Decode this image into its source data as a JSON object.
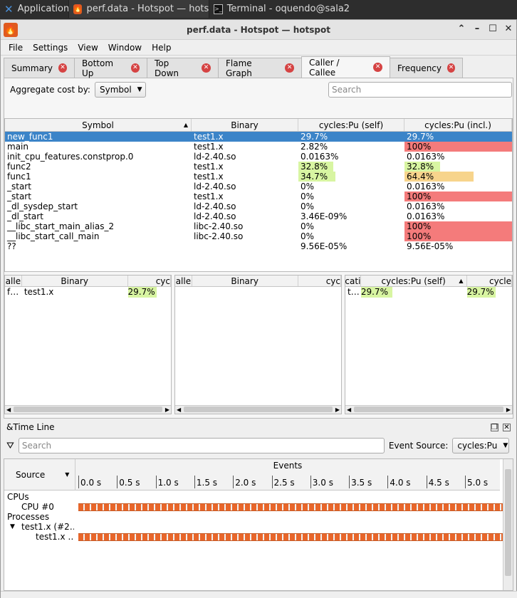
{
  "taskbar": {
    "apps_label": "Applications",
    "tasks": [
      {
        "label": "perf.data - Hotspot — hots…",
        "icon": "hotspot-icon"
      },
      {
        "label": "Terminal - oquendo@sala2…",
        "icon": "terminal-icon"
      }
    ]
  },
  "window": {
    "title": "perf.data - Hotspot — hotspot"
  },
  "menubar": [
    "File",
    "Settings",
    "View",
    "Window",
    "Help"
  ],
  "tabs": [
    "Summary",
    "Bottom Up",
    "Top Down",
    "Flame Graph",
    "Caller / Callee",
    "Frequency"
  ],
  "selected_tab": "Caller / Callee",
  "aggregate": {
    "label": "Aggregate cost by:",
    "value": "Symbol"
  },
  "search_placeholder": "Search",
  "main_table": {
    "columns": [
      "Symbol",
      "Binary",
      "cycles:Pu (self)",
      "cycles:Pu (incl.)"
    ],
    "rows": [
      {
        "symbol": "new_func1",
        "binary": "test1.x",
        "self": "29.7%",
        "incl": "29.7%",
        "selected": true
      },
      {
        "symbol": "main",
        "binary": "test1.x",
        "self": "2.82%",
        "incl": "100%"
      },
      {
        "symbol": "init_cpu_features.constprop.0",
        "binary": "ld-2.40.so",
        "self": "0.0163%",
        "incl": "0.0163%"
      },
      {
        "symbol": "func2",
        "binary": "test1.x",
        "self": "32.8%",
        "incl": "32.8%"
      },
      {
        "symbol": "func1",
        "binary": "test1.x",
        "self": "34.7%",
        "incl": "64.4%"
      },
      {
        "symbol": "_start",
        "binary": "ld-2.40.so",
        "self": "0%",
        "incl": "0.0163%"
      },
      {
        "symbol": "_start",
        "binary": "test1.x",
        "self": "0%",
        "incl": "100%"
      },
      {
        "symbol": "_dl_sysdep_start",
        "binary": "ld-2.40.so",
        "self": "0%",
        "incl": "0.0163%"
      },
      {
        "symbol": "_dl_start",
        "binary": "ld-2.40.so",
        "self": "3.46E-09%",
        "incl": "0.0163%"
      },
      {
        "symbol": "__libc_start_main_alias_2",
        "binary": "libc-2.40.so",
        "self": "0%",
        "incl": "100%"
      },
      {
        "symbol": "__libc_start_call_main",
        "binary": "libc-2.40.so",
        "self": "0%",
        "incl": "100%"
      },
      {
        "symbol": "??",
        "binary": "",
        "self": "9.56E-05%",
        "incl": "9.56E-05%"
      }
    ]
  },
  "callers_pane": {
    "columns": [
      "alle",
      "Binary",
      "cyc"
    ],
    "row": {
      "c0": "f…",
      "c1": "test1.x",
      "c2": "29.7%"
    }
  },
  "callees_pane": {
    "columns": [
      "alle",
      "Binary",
      "cyc"
    ]
  },
  "locations_pane": {
    "columns": [
      "cati",
      "cycles:Pu (self)",
      "cycle"
    ],
    "row": {
      "c0": "t…",
      "c1": "29.7%",
      "c2": "29.7%"
    }
  },
  "timeline": {
    "title": "&Time Line",
    "search_placeholder": "Search",
    "event_source_label": "Event Source:",
    "event_source_value": "cycles:Pu",
    "source_label": "Source",
    "events_label": "Events",
    "ticks": [
      "0.0 s",
      "0.5 s",
      "1.0 s",
      "1.5 s",
      "2.0 s",
      "2.5 s",
      "3.0 s",
      "3.5 s",
      "4.0 s",
      "4.5 s",
      "5.0 s"
    ],
    "rows": {
      "cpus": "CPUs",
      "cpu0": "CPU #0",
      "processes": "Processes",
      "process": "test1.x (#2…",
      "thread": "test1.x …"
    }
  },
  "colors": {
    "selection": "#3b84c8",
    "hot_red": "#f47b7b",
    "warm_orange": "#f7d48c",
    "cool_green": "#d8f5a2",
    "lane_orange": "#e8662a",
    "tab_close_red": "#d54343"
  }
}
